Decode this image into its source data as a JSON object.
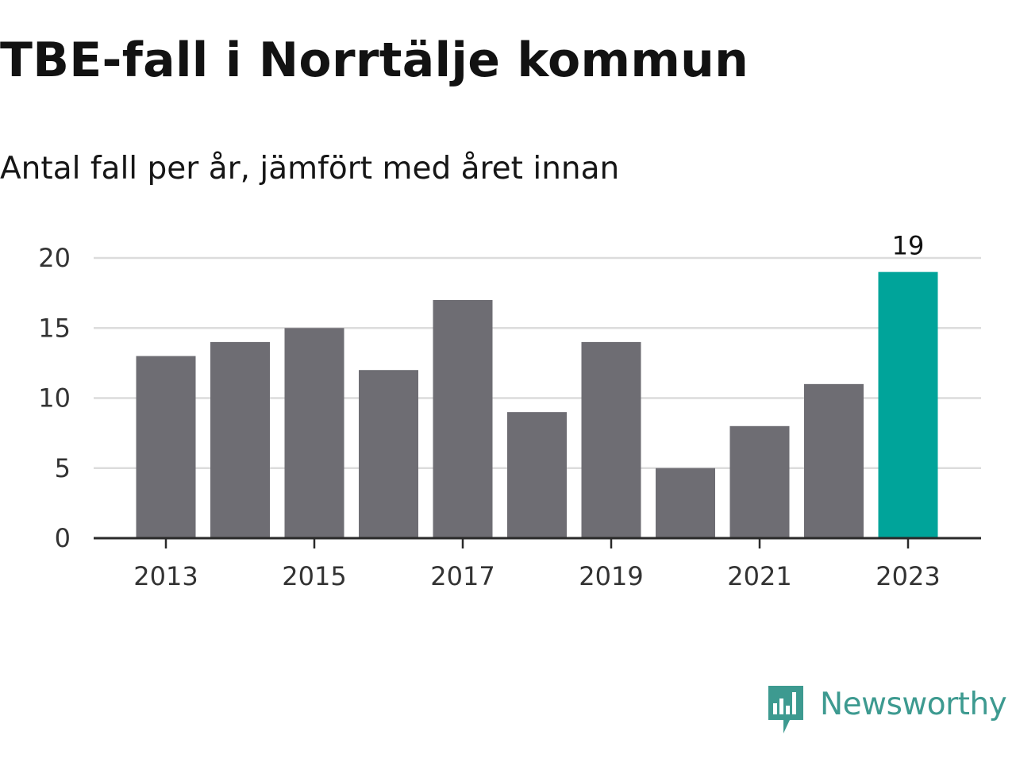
{
  "title": "TBE-fall i Norrtälje kommun",
  "subtitle": "Antal fall per år, jämfört med året innan",
  "brand": {
    "name": "Newsworthy",
    "icon": "newsworthy-logo-icon",
    "color": "#3d9a90"
  },
  "chart_data": {
    "type": "bar",
    "categories": [
      "2013",
      "2014",
      "2015",
      "2016",
      "2017",
      "2018",
      "2019",
      "2020",
      "2021",
      "2022",
      "2023"
    ],
    "values": [
      13,
      14,
      15,
      12,
      17,
      9,
      14,
      5,
      8,
      11,
      19
    ],
    "x_tick_labels": [
      "2013",
      "2015",
      "2017",
      "2019",
      "2021",
      "2023"
    ],
    "y_ticks": [
      0,
      5,
      10,
      15,
      20
    ],
    "ylim": [
      0,
      20
    ],
    "xlabel": "",
    "ylabel": "",
    "grid": true,
    "bar_color": "#6e6d73",
    "highlight": {
      "category": "2023",
      "color": "#00a49a",
      "label": "19"
    }
  }
}
